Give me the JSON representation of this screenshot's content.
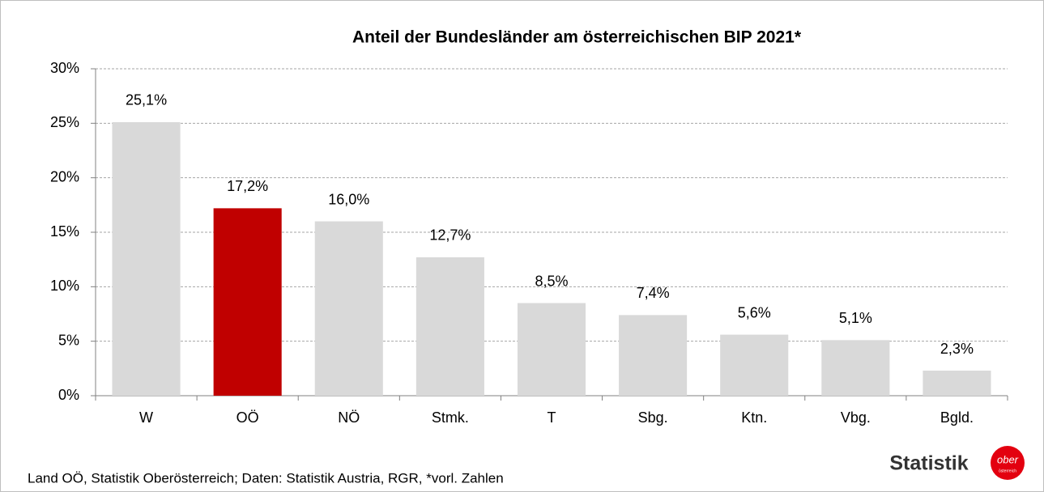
{
  "chart_data": {
    "type": "bar",
    "title": "Anteil der Bundesländer am österreichischen BIP 2021*",
    "categories": [
      "W",
      "OÖ",
      "NÖ",
      "Stmk.",
      "T",
      "Sbg.",
      "Ktn.",
      "Vbg.",
      "Bgld."
    ],
    "values": [
      25.1,
      17.2,
      16.0,
      12.7,
      8.5,
      7.4,
      5.6,
      5.1,
      2.3
    ],
    "value_labels": [
      "25,1%",
      "17,2%",
      "16,0%",
      "12,7%",
      "8,5%",
      "7,4%",
      "5,6%",
      "5,1%",
      "2,3%"
    ],
    "colors": [
      "#d9d9d9",
      "#c00000",
      "#d9d9d9",
      "#d9d9d9",
      "#d9d9d9",
      "#d9d9d9",
      "#d9d9d9",
      "#d9d9d9",
      "#d9d9d9"
    ],
    "ylim": [
      0,
      30
    ],
    "yticks": [
      {
        "value": 0,
        "label": "0%"
      },
      {
        "value": 5,
        "label": "5%"
      },
      {
        "value": 10,
        "label": "10%"
      },
      {
        "value": 15,
        "label": "15%"
      },
      {
        "value": 20,
        "label": "20%"
      },
      {
        "value": 25,
        "label": "25%"
      },
      {
        "value": 30,
        "label": "30%"
      }
    ],
    "grid": true,
    "source": "Land OÖ, Statistik Oberösterreich; Daten: Statistik Austria, RGR, *vorl. Zahlen"
  },
  "logo": {
    "text": "Statistik",
    "badge": "ober",
    "badge_sub": "österreich"
  }
}
